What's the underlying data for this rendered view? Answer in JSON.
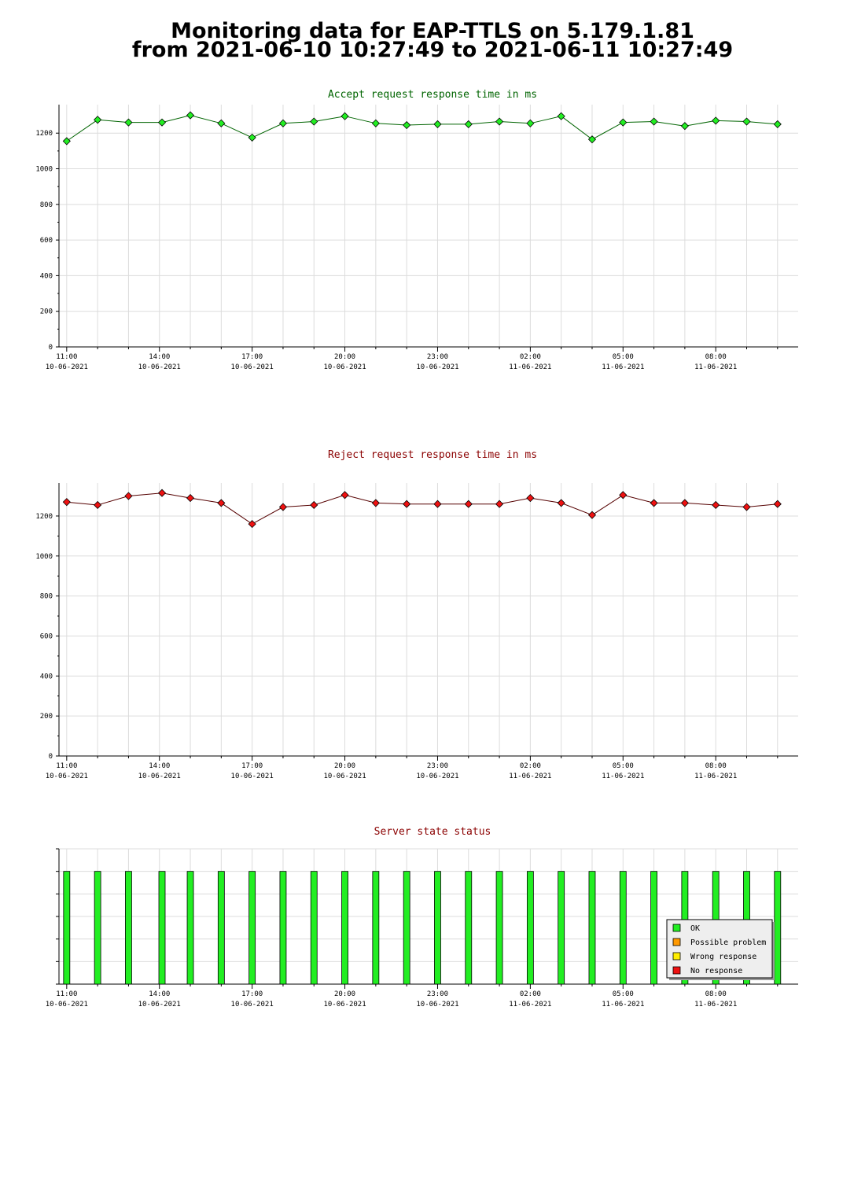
{
  "page": {
    "title_line1": "Monitoring data for EAP-TTLS on 5.179.1.81",
    "title_line2": "from 2021-06-10 10:27:49 to 2021-06-11 10:27:49"
  },
  "colors": {
    "accept_title": "#006400",
    "reject_title": "#8b0000",
    "status_title": "#8b0000",
    "ok": "#22ee22",
    "possible_problem": "#ff9900",
    "wrong_response": "#ffee00",
    "no_response": "#ee1111",
    "accept_line": "#006400",
    "reject_line": "#550000",
    "grid": "#dcdcdc"
  },
  "chart_data": [
    {
      "type": "line",
      "title": "Accept request response time in ms",
      "xlabel": "",
      "ylabel": "",
      "ylim": [
        0,
        1360
      ],
      "yticks": [
        0,
        200,
        400,
        600,
        800,
        1000,
        1200
      ],
      "xlim": [
        "10-06-2021 10:45",
        "11-06-2021 10:40"
      ],
      "xticks": [
        {
          "time": "11:00",
          "date": "10-06-2021"
        },
        {
          "time": "14:00",
          "date": "10-06-2021"
        },
        {
          "time": "17:00",
          "date": "10-06-2021"
        },
        {
          "time": "20:00",
          "date": "10-06-2021"
        },
        {
          "time": "23:00",
          "date": "10-06-2021"
        },
        {
          "time": "02:00",
          "date": "11-06-2021"
        },
        {
          "time": "05:00",
          "date": "11-06-2021"
        },
        {
          "time": "08:00",
          "date": "11-06-2021"
        }
      ],
      "grid": true,
      "x": [
        "10-06-2021 11:00",
        "10-06-2021 12:00",
        "10-06-2021 13:00",
        "10-06-2021 14:05",
        "10-06-2021 15:00",
        "10-06-2021 16:00",
        "10-06-2021 17:00",
        "10-06-2021 18:00",
        "10-06-2021 19:00",
        "10-06-2021 20:00",
        "10-06-2021 21:00",
        "10-06-2021 22:00",
        "10-06-2021 23:00",
        "11-06-2021 00:00",
        "11-06-2021 01:00",
        "11-06-2021 02:00",
        "11-06-2021 03:00",
        "11-06-2021 04:00",
        "11-06-2021 05:00",
        "11-06-2021 06:00",
        "11-06-2021 07:00",
        "11-06-2021 08:00",
        "11-06-2021 09:00",
        "11-06-2021 10:00"
      ],
      "series": [
        {
          "values": [
            1155,
            1275,
            1260,
            1260,
            1300,
            1255,
            1175,
            1255,
            1265,
            1295,
            1255,
            1245,
            1250,
            1250,
            1265,
            1255,
            1295,
            1165,
            1260,
            1265,
            1240,
            1270,
            1265,
            1250
          ]
        }
      ]
    },
    {
      "type": "line",
      "title": "Reject request response time in ms",
      "xlabel": "",
      "ylabel": "",
      "ylim": [
        0,
        1365
      ],
      "yticks": [
        0,
        200,
        400,
        600,
        800,
        1000,
        1200
      ],
      "xlim": [
        "10-06-2021 10:45",
        "11-06-2021 10:40"
      ],
      "xticks": [
        {
          "time": "11:00",
          "date": "10-06-2021"
        },
        {
          "time": "14:00",
          "date": "10-06-2021"
        },
        {
          "time": "17:00",
          "date": "10-06-2021"
        },
        {
          "time": "20:00",
          "date": "10-06-2021"
        },
        {
          "time": "23:00",
          "date": "10-06-2021"
        },
        {
          "time": "02:00",
          "date": "11-06-2021"
        },
        {
          "time": "05:00",
          "date": "11-06-2021"
        },
        {
          "time": "08:00",
          "date": "11-06-2021"
        }
      ],
      "grid": true,
      "x": [
        "10-06-2021 11:00",
        "10-06-2021 12:00",
        "10-06-2021 13:00",
        "10-06-2021 14:05",
        "10-06-2021 15:00",
        "10-06-2021 16:00",
        "10-06-2021 17:00",
        "10-06-2021 18:00",
        "10-06-2021 19:00",
        "10-06-2021 20:00",
        "10-06-2021 21:00",
        "10-06-2021 22:00",
        "10-06-2021 23:00",
        "11-06-2021 00:00",
        "11-06-2021 01:00",
        "11-06-2021 02:00",
        "11-06-2021 03:00",
        "11-06-2021 04:00",
        "11-06-2021 05:00",
        "11-06-2021 06:00",
        "11-06-2021 07:00",
        "11-06-2021 08:00",
        "11-06-2021 09:00",
        "11-06-2021 10:00"
      ],
      "series": [
        {
          "values": [
            1270,
            1255,
            1300,
            1315,
            1290,
            1265,
            1160,
            1245,
            1255,
            1305,
            1265,
            1260,
            1260,
            1260,
            1260,
            1290,
            1265,
            1205,
            1305,
            1265,
            1265,
            1255,
            1245,
            1260
          ]
        }
      ]
    },
    {
      "type": "bar",
      "title": "Server state status",
      "xlabel": "",
      "ylabel": "",
      "ylim": [
        0,
        1.2
      ],
      "xlim": [
        "10-06-2021 10:45",
        "11-06-2021 10:40"
      ],
      "xticks": [
        {
          "time": "11:00",
          "date": "10-06-2021"
        },
        {
          "time": "14:00",
          "date": "10-06-2021"
        },
        {
          "time": "17:00",
          "date": "10-06-2021"
        },
        {
          "time": "20:00",
          "date": "10-06-2021"
        },
        {
          "time": "23:00",
          "date": "10-06-2021"
        },
        {
          "time": "02:00",
          "date": "11-06-2021"
        },
        {
          "time": "05:00",
          "date": "11-06-2021"
        },
        {
          "time": "08:00",
          "date": "11-06-2021"
        }
      ],
      "grid": true,
      "legend": {
        "placement": "bottom-right",
        "entries": [
          {
            "label": "OK",
            "color": "#22ee22"
          },
          {
            "label": "Possible problem",
            "color": "#ff9900"
          },
          {
            "label": "Wrong response",
            "color": "#ffee00"
          },
          {
            "label": "No response",
            "color": "#ee1111"
          }
        ]
      },
      "x": [
        "10-06-2021 11:00",
        "10-06-2021 12:00",
        "10-06-2021 13:00",
        "10-06-2021 14:05",
        "10-06-2021 15:00",
        "10-06-2021 16:00",
        "10-06-2021 17:00",
        "10-06-2021 18:00",
        "10-06-2021 19:00",
        "10-06-2021 20:00",
        "10-06-2021 21:00",
        "10-06-2021 22:00",
        "10-06-2021 23:00",
        "11-06-2021 00:00",
        "11-06-2021 01:00",
        "11-06-2021 02:00",
        "11-06-2021 03:00",
        "11-06-2021 04:00",
        "11-06-2021 05:00",
        "11-06-2021 06:00",
        "11-06-2021 07:00",
        "11-06-2021 08:00",
        "11-06-2021 09:00",
        "11-06-2021 10:00"
      ],
      "series": [
        {
          "name": "OK",
          "values": [
            1,
            1,
            1,
            1,
            1,
            1,
            1,
            1,
            1,
            1,
            1,
            1,
            1,
            1,
            1,
            1,
            1,
            1,
            1,
            1,
            1,
            1,
            1,
            1
          ]
        }
      ]
    }
  ]
}
